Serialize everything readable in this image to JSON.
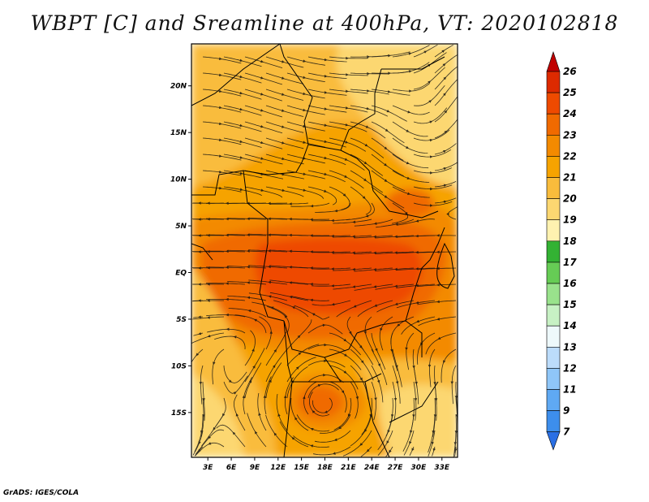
{
  "title": "WBPT [C] and Sreamline at 400hPa, VT: 2020102818",
  "credit": "GrADS: IGES/COLA",
  "axes": {
    "x_ticks": [
      "3E",
      "6E",
      "9E",
      "12E",
      "15E",
      "18E",
      "21E",
      "24E",
      "27E",
      "30E",
      "33E"
    ],
    "x_values": [
      3,
      6,
      9,
      12,
      15,
      18,
      21,
      24,
      27,
      30,
      33
    ],
    "y_ticks": [
      "20N",
      "15N",
      "10N",
      "5N",
      "EQ",
      "5S",
      "10S",
      "15S"
    ],
    "y_values": [
      20,
      15,
      10,
      5,
      0,
      -5,
      -10,
      -15
    ],
    "lon_range": [
      0.9,
      35.0
    ],
    "lat_range": [
      -19.8,
      24.5
    ]
  },
  "colorbar": {
    "labels": [
      "26",
      "25",
      "24",
      "23",
      "22",
      "21",
      "20",
      "19",
      "18",
      "17",
      "16",
      "15",
      "14",
      "13",
      "12",
      "11",
      "9",
      "7"
    ],
    "colors": [
      "#c00000",
      "#dd2a00",
      "#ee4a00",
      "#f06a00",
      "#f38a00",
      "#f6a300",
      "#f9bc3c",
      "#fcd771",
      "#fff2b0",
      "#33b233",
      "#66cc55",
      "#99e28c",
      "#c7f1c4",
      "#eef9fb",
      "#bcdcfb",
      "#8fc6f8",
      "#5fa9f3",
      "#3d8eec",
      "#2a6fe4"
    ]
  },
  "field_colors": {
    "c26": "#c00000",
    "c25": "#dd2a00",
    "c24": "#ee4a00",
    "c23": "#f06a00",
    "c22": "#f38a00",
    "c21": "#f6a300",
    "c20": "#f9bc3c",
    "c19": "#fcd771",
    "c18": "#fff2b0"
  }
}
